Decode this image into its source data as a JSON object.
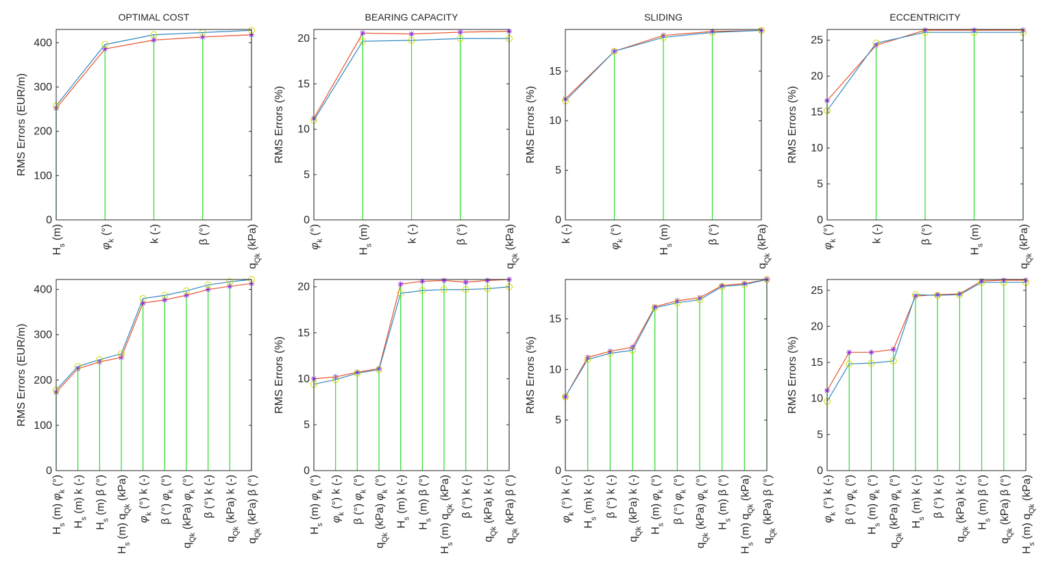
{
  "colors": {
    "series_a": "#E8502A",
    "series_b": "#2E86C1",
    "stem": "#22DD22",
    "marker_star": "#8B2BE2",
    "marker_circle": "#D4D400"
  },
  "chart_data": [
    {
      "type": "line",
      "title": "OPTIMAL COST",
      "ylabel": "RMS Errors (EUR/m)",
      "ylim": [
        0,
        430
      ],
      "yticks": [
        0,
        100,
        200,
        300,
        400
      ],
      "categories": [
        "H_s (m)",
        "φ_k (°)",
        "k (-)",
        "β (°)",
        "q_Qk (kPa)"
      ],
      "series": [
        {
          "name": "series_a",
          "marker": "star",
          "values": [
            252,
            386,
            406,
            413,
            418
          ]
        },
        {
          "name": "series_b",
          "marker": "circle",
          "values": [
            258,
            396,
            418,
            423,
            428
          ]
        }
      ]
    },
    {
      "type": "line",
      "title": "BEARING CAPACITY",
      "ylabel": "RMS Errors (%)",
      "ylim": [
        0,
        21
      ],
      "yticks": [
        0,
        5,
        10,
        15,
        20
      ],
      "categories": [
        "φ_k (°)",
        "H_s (m)",
        "k (-)",
        "β (°)",
        "q_Qk (kPa)"
      ],
      "series": [
        {
          "name": "series_a",
          "marker": "star",
          "values": [
            11.2,
            20.6,
            20.5,
            20.7,
            20.8
          ]
        },
        {
          "name": "series_b",
          "marker": "circle",
          "values": [
            11.0,
            19.7,
            19.8,
            20.0,
            20.0
          ]
        }
      ]
    },
    {
      "type": "line",
      "title": "SLIDING",
      "ylabel": "RMS Errors (%)",
      "ylim": [
        0,
        19.2
      ],
      "yticks": [
        0,
        5,
        10,
        15
      ],
      "categories": [
        "k (-)",
        "φ_k (°)",
        "H_s (m)",
        "β (°)",
        "q_Qk (kPa)"
      ],
      "series": [
        {
          "name": "series_a",
          "marker": "star",
          "values": [
            12.2,
            17.0,
            18.6,
            19.0,
            19.1
          ]
        },
        {
          "name": "series_b",
          "marker": "circle",
          "values": [
            12.0,
            17.0,
            18.4,
            18.9,
            19.1
          ]
        }
      ]
    },
    {
      "type": "line",
      "title": "ECCENTRICITY",
      "ylabel": "RMS Errors (%)",
      "ylim": [
        0,
        26.5
      ],
      "yticks": [
        0,
        5,
        10,
        15,
        20,
        25
      ],
      "categories": [
        "φ_k (°)",
        "k (-)",
        "β (°)",
        "H_s (m)",
        "q_Qk (kPa)"
      ],
      "series": [
        {
          "name": "series_a",
          "marker": "star",
          "values": [
            16.6,
            24.3,
            26.4,
            26.4,
            26.4
          ]
        },
        {
          "name": "series_b",
          "marker": "circle",
          "values": [
            15.2,
            24.6,
            26.1,
            26.1,
            26.1
          ]
        }
      ]
    },
    {
      "type": "line",
      "title": "",
      "ylabel": "RMS Errors (EUR/m)",
      "ylim": [
        0,
        422
      ],
      "yticks": [
        0,
        100,
        200,
        300,
        400
      ],
      "categories": [
        "H_s (m) φ_k (°)",
        "H_s (m) k (-)",
        "H_s (m) β (°)",
        "H_s (m) q_Qk (kPa)",
        "φ_k (°) k (-)",
        "β (°) φ_k (°)",
        "q_Qk (kPa) φ_k (°)",
        "β (°) k (-)",
        "q_Qk (kPa) k (-)",
        "q_Qk (kPa) β (°)"
      ],
      "series": [
        {
          "name": "series_a",
          "marker": "star",
          "values": [
            173,
            225,
            240,
            250,
            370,
            377,
            387,
            400,
            407,
            413
          ]
        },
        {
          "name": "series_b",
          "marker": "circle",
          "values": [
            178,
            230,
            245,
            258,
            380,
            387,
            397,
            410,
            417,
            422
          ]
        }
      ]
    },
    {
      "type": "line",
      "title": "",
      "ylabel": "RMS Errors (%)",
      "ylim": [
        0,
        20.8
      ],
      "yticks": [
        0,
        5,
        10,
        15,
        20
      ],
      "categories": [
        "H_s (m) φ_k (°)",
        "φ_k (°) k (-)",
        "β (°) φ_k (°)",
        "q_Qk (kPa) φ_k (°)",
        "H_s (m) k (-)",
        "H_s (m) β (°)",
        "H_s (m) q_Qk (kPa)",
        "β (°) k (-)",
        "q_Qk (kPa) k (-)",
        "q_Qk (kPa) β (°)"
      ],
      "series": [
        {
          "name": "series_a",
          "marker": "star",
          "values": [
            10.0,
            10.2,
            10.7,
            11.1,
            20.3,
            20.6,
            20.7,
            20.5,
            20.7,
            20.8
          ]
        },
        {
          "name": "series_b",
          "marker": "circle",
          "values": [
            9.4,
            9.9,
            10.6,
            11.0,
            19.3,
            19.6,
            19.7,
            19.7,
            19.8,
            20.0
          ]
        }
      ]
    },
    {
      "type": "line",
      "title": "",
      "ylabel": "RMS Errors (%)",
      "ylim": [
        0,
        18.9
      ],
      "yticks": [
        0,
        5,
        10,
        15
      ],
      "categories": [
        "φ_k (°) k (-)",
        "H_s (m) k (-)",
        "β (°) k (-)",
        "q_Qk (kPa) k (-)",
        "H_s (m) φ_k (°)",
        "β (°) φ_k (°)",
        "q_Qk (kPa) φ_k (°)",
        "H_s (m) β (°)",
        "H_s (m) q_Qk (kPa)",
        "q_Qk (kPa) β (°)"
      ],
      "series": [
        {
          "name": "series_a",
          "marker": "star",
          "values": [
            7.3,
            11.2,
            11.8,
            12.2,
            16.2,
            16.8,
            17.1,
            18.3,
            18.5,
            18.9
          ]
        },
        {
          "name": "series_b",
          "marker": "circle",
          "values": [
            7.3,
            11.0,
            11.6,
            11.9,
            16.1,
            16.6,
            16.9,
            18.2,
            18.4,
            18.9
          ]
        }
      ]
    },
    {
      "type": "line",
      "title": "",
      "ylabel": "RMS Errors (%)",
      "ylim": [
        0,
        26.5
      ],
      "yticks": [
        0,
        5,
        10,
        15,
        20,
        25
      ],
      "categories": [
        "φ_k (°) k (-)",
        "β (°) φ_k (°)",
        "H_s (m) φ_k (°)",
        "q_Qk (kPa) φ_k (°)",
        "H_s (m) k (-)",
        "β (°) k (-)",
        "q_Qk (kPa) k (-)",
        "H_s (m) β (°)",
        "q_Qk (kPa) β (°)",
        "H_s (m) q_Qk (kPa)"
      ],
      "series": [
        {
          "name": "series_a",
          "marker": "star",
          "values": [
            11.1,
            16.4,
            16.4,
            16.8,
            24.2,
            24.4,
            24.5,
            26.3,
            26.4,
            26.4
          ]
        },
        {
          "name": "series_b",
          "marker": "circle",
          "values": [
            9.6,
            14.8,
            14.9,
            15.2,
            24.4,
            24.3,
            24.4,
            26.1,
            26.1,
            26.1
          ]
        }
      ]
    }
  ]
}
